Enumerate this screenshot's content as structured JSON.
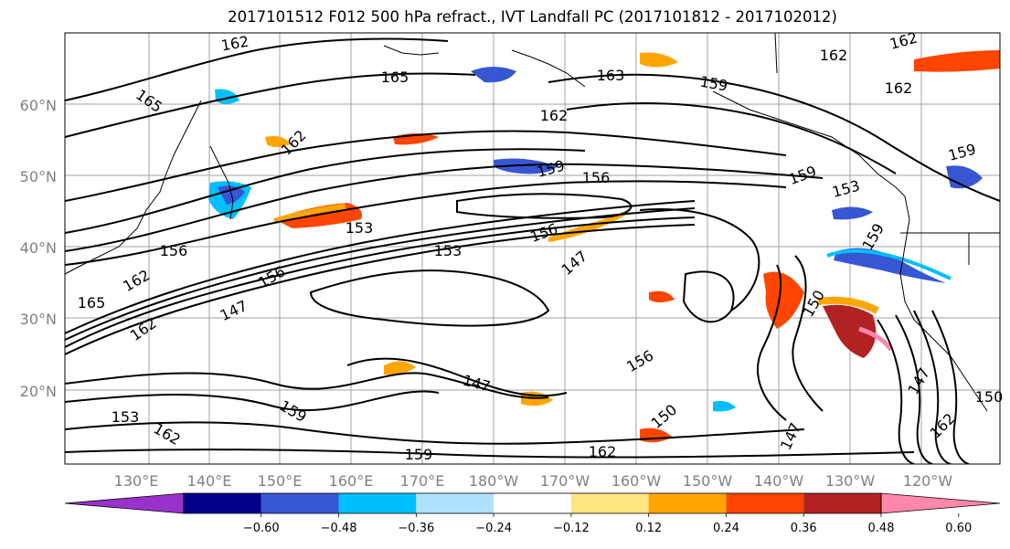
{
  "title": "2017101512 F012 500 hPa refract., IVT Landfall PC (2017101812 - 2017102012)",
  "map": {
    "lon_labels": [
      "130°E",
      "140°E",
      "150°E",
      "160°E",
      "170°E",
      "180°W",
      "170°W",
      "160°W",
      "150°W",
      "140°W",
      "130°W",
      "120°W"
    ],
    "lat_labels": [
      "60°N",
      "50°N",
      "40°N",
      "30°N",
      "20°N"
    ],
    "gridline_color": "#a0a0a0",
    "contour_color": "#000000"
  },
  "contour_labels": [
    {
      "text": "162",
      "rot": -10
    },
    {
      "text": "165",
      "rot": 0
    },
    {
      "text": "165",
      "rot": 35
    },
    {
      "text": "162",
      "rot": -45
    },
    {
      "text": "153",
      "rot": 0
    },
    {
      "text": "156",
      "rot": 0
    },
    {
      "text": "162",
      "rot": -30
    },
    {
      "text": "165",
      "rot": 0
    },
    {
      "text": "156",
      "rot": -30
    },
    {
      "text": "147",
      "rot": -25
    },
    {
      "text": "162",
      "rot": -35
    },
    {
      "text": "153",
      "rot": 0
    },
    {
      "text": "156",
      "rot": -20
    },
    {
      "text": "147",
      "rot": -40
    },
    {
      "text": "159",
      "rot": -15
    },
    {
      "text": "156",
      "rot": 0
    },
    {
      "text": "162",
      "rot": 0
    },
    {
      "text": "163",
      "rot": 0
    },
    {
      "text": "159",
      "rot": 10
    },
    {
      "text": "159",
      "rot": -20
    },
    {
      "text": "153",
      "rot": -15
    },
    {
      "text": "159",
      "rot": -60
    },
    {
      "text": "162",
      "rot": 0
    },
    {
      "text": "162",
      "rot": 0
    },
    {
      "text": "162",
      "rot": -15
    },
    {
      "text": "159",
      "rot": -15
    },
    {
      "text": "156",
      "rot": -30
    },
    {
      "text": "150",
      "rot": -40
    },
    {
      "text": "162",
      "rot": 0
    },
    {
      "text": "159",
      "rot": 0
    },
    {
      "text": "147",
      "rot": -65
    },
    {
      "text": "150",
      "rot": -60
    },
    {
      "text": "162",
      "rot": -45
    },
    {
      "text": "153",
      "rot": 0
    },
    {
      "text": "162",
      "rot": 30
    },
    {
      "text": "159",
      "rot": 30
    },
    {
      "text": "147",
      "rot": 15
    },
    {
      "text": "147",
      "rot": -60
    },
    {
      "text": "150",
      "rot": 0
    }
  ],
  "colorbar": {
    "colors": [
      "#9932cc",
      "#00008b",
      "#3656d4",
      "#00bfff",
      "#aee3ff",
      "#ffffff",
      "#ffe680",
      "#ffa500",
      "#ff4500",
      "#b22222",
      "#ff88aa"
    ],
    "tick_labels": [
      "−0.60",
      "−0.48",
      "−0.36",
      "−0.24",
      "−0.12",
      "0.12",
      "0.24",
      "0.36",
      "0.48",
      "0.60"
    ]
  }
}
